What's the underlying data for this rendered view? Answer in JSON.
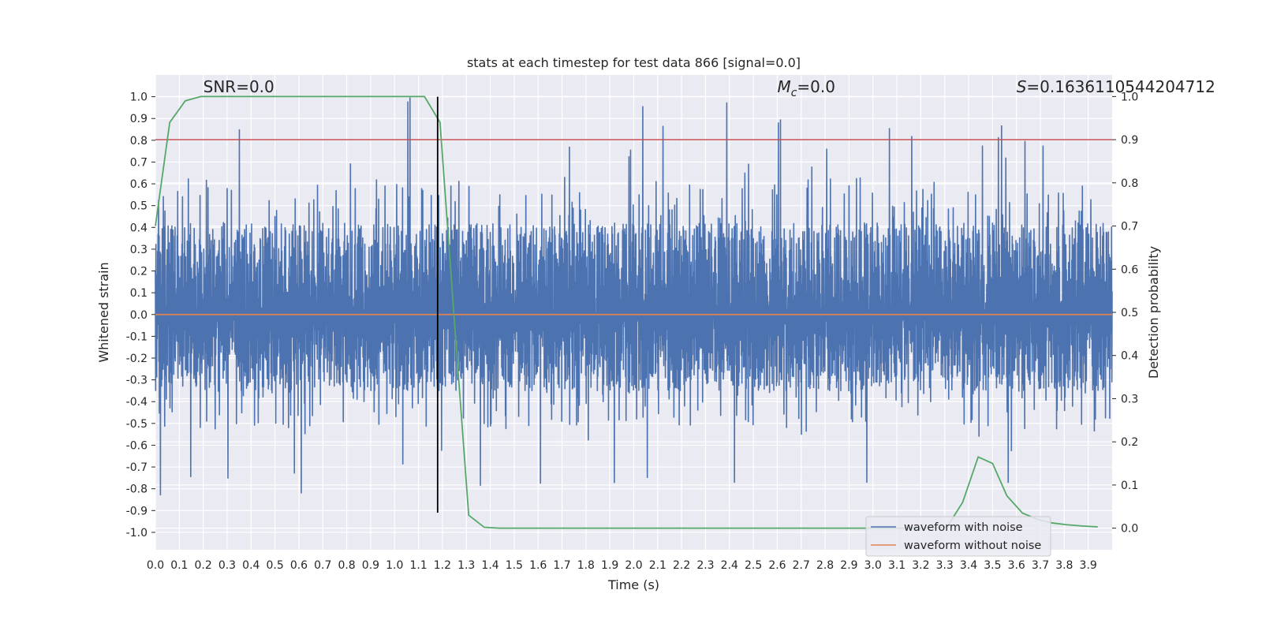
{
  "chart_data": {
    "type": "line",
    "title": "stats at each timestep for test data 866 [signal=0.0]",
    "xlabel": "Time (s)",
    "ylabel": "Whitened strain",
    "y2label": "Detection probability",
    "xlim": [
      0.0,
      4.0
    ],
    "ylim": [
      -1.08,
      1.1
    ],
    "y2lim": [
      -0.05,
      1.05
    ],
    "xticks": [
      "0.0",
      "0.1",
      "0.2",
      "0.3",
      "0.4",
      "0.5",
      "0.6",
      "0.7",
      "0.8",
      "0.9",
      "1.0",
      "1.1",
      "1.2",
      "1.3",
      "1.4",
      "1.5",
      "1.6",
      "1.7",
      "1.8",
      "1.9",
      "2.0",
      "2.1",
      "2.2",
      "2.3",
      "2.4",
      "2.5",
      "2.6",
      "2.7",
      "2.8",
      "2.9",
      "3.0",
      "3.1",
      "3.2",
      "3.3",
      "3.4",
      "3.5",
      "3.6",
      "3.7",
      "3.8",
      "3.9"
    ],
    "yticks": [
      "1.0",
      "0.9",
      "0.8",
      "0.7",
      "0.6",
      "0.5",
      "0.4",
      "0.3",
      "0.2",
      "0.1",
      "0.0",
      "-0.1",
      "-0.2",
      "-0.3",
      "-0.4",
      "-0.5",
      "-0.6",
      "-0.7",
      "-0.8",
      "-0.9",
      "-1.0"
    ],
    "y2ticks": [
      "1.0",
      "0.9",
      "0.8",
      "0.7",
      "0.6",
      "0.5",
      "0.4",
      "0.3",
      "0.2",
      "0.1",
      "0.0"
    ],
    "grid": true,
    "legend_position": "bottom-right",
    "annotations": {
      "snr": {
        "prefix": "SNR",
        "value": "=0.0"
      },
      "mc": {
        "symbol": "M",
        "subscript": "c",
        "value": "=0.0"
      },
      "s": {
        "symbol": "S",
        "value": "=0.1636110544204712"
      }
    },
    "series": [
      {
        "name": "waveform with noise",
        "color": "#4c72b0",
        "type": "noise",
        "amplitude_envelope": [
          -0.91,
          1.0
        ],
        "typical_band": [
          -0.35,
          0.42
        ]
      },
      {
        "name": "waveform without noise",
        "color": "#dd8452",
        "x": [
          0.0,
          4.0
        ],
        "y": [
          0.0,
          0.0
        ]
      },
      {
        "color": "#55a868",
        "axis": "right",
        "x": [
          0.0,
          0.06,
          0.125,
          0.19,
          0.25,
          0.31,
          0.375,
          0.44,
          0.5,
          0.56,
          0.625,
          0.69,
          0.75,
          0.81,
          0.875,
          0.94,
          1.0,
          1.06,
          1.125,
          1.19,
          1.25,
          1.31,
          1.375,
          1.44,
          1.5,
          1.56,
          1.625,
          1.69,
          1.75,
          1.81,
          1.875,
          1.94,
          2.0,
          2.06,
          2.125,
          2.19,
          2.25,
          2.31,
          2.375,
          2.44,
          2.5,
          2.56,
          2.625,
          2.69,
          2.75,
          2.81,
          2.875,
          2.94,
          3.0,
          3.06,
          3.125,
          3.19,
          3.25,
          3.31,
          3.375,
          3.44,
          3.5,
          3.56,
          3.625,
          3.69,
          3.75,
          3.81,
          3.875,
          3.94
        ],
        "y": [
          0.7,
          0.94,
          0.99,
          1.0,
          1.0,
          1.0,
          1.0,
          1.0,
          1.0,
          1.0,
          1.0,
          1.0,
          1.0,
          1.0,
          1.0,
          1.0,
          1.0,
          1.0,
          1.0,
          0.94,
          0.48,
          0.03,
          0.002,
          0.0,
          0.0,
          0.0,
          0.0,
          0.0,
          0.0,
          0.0,
          0.0,
          0.0,
          0.0,
          0.0,
          0.0,
          0.0,
          0.0,
          0.0,
          0.0,
          0.0,
          0.0,
          0.0,
          0.0,
          0.0,
          0.0,
          0.0,
          0.0,
          0.0,
          0.0,
          0.0,
          0.0,
          0.0,
          0.0,
          0.003,
          0.06,
          0.165,
          0.15,
          0.075,
          0.035,
          0.02,
          0.012,
          0.008,
          0.005,
          0.003
        ]
      },
      {
        "color": "#c44e52",
        "axis": "right",
        "x": [
          0.0,
          4.0
        ],
        "y": [
          0.9,
          0.9
        ]
      },
      {
        "color": "#000000",
        "type": "vline",
        "x": 1.18,
        "y_range": [
          -0.91,
          1.0
        ]
      }
    ]
  }
}
